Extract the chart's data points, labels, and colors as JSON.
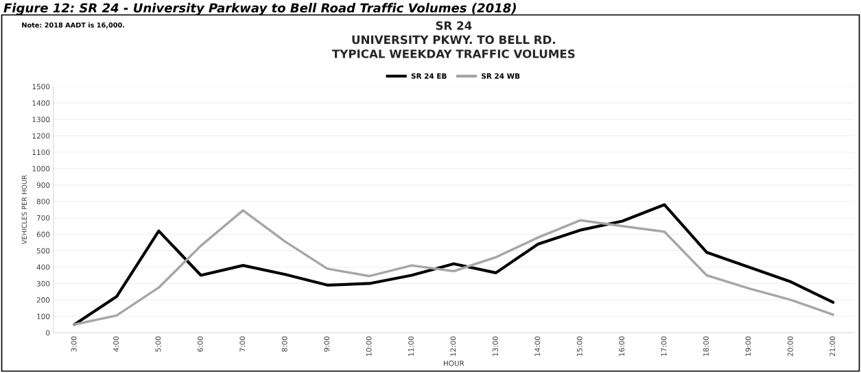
{
  "chart_data": {
    "type": "line",
    "title": "SR 24\nUNIVERSITY PKWY. TO BELL RD.\nTYPICAL WEEKDAY TRAFFIC VOLUMES",
    "xlabel": "HOUR",
    "ylabel": "VEHICLES PER HOUR",
    "annotations": [
      "Figure 12: SR 24 - University Parkway to Bell Road Traffic Volumes (2018)",
      "Note: 2018 AADT is 16,000."
    ],
    "categories": [
      "3:00",
      "4:00",
      "5:00",
      "6:00",
      "7:00",
      "8:00",
      "9:00",
      "10:00",
      "11:00",
      "12:00",
      "13:00",
      "14:00",
      "15:00",
      "16:00",
      "17:00",
      "18:00",
      "19:00",
      "20:00",
      "21:00"
    ],
    "series": [
      {
        "name": "SR 24 EB",
        "color": "#000000",
        "values": [
          50,
          220,
          620,
          350,
          410,
          355,
          290,
          300,
          350,
          420,
          365,
          540,
          625,
          680,
          780,
          490,
          400,
          310,
          185
        ]
      },
      {
        "name": "SR 24 WB",
        "color": "#a6a6a6",
        "values": [
          50,
          105,
          275,
          530,
          745,
          555,
          390,
          345,
          410,
          375,
          460,
          580,
          685,
          650,
          615,
          350,
          270,
          200,
          110
        ]
      }
    ],
    "ylim": [
      0,
      1500
    ],
    "yticks": [
      0,
      100,
      200,
      300,
      400,
      500,
      600,
      700,
      800,
      900,
      1000,
      1100,
      1200,
      1300,
      1400,
      1500
    ],
    "grid": "y",
    "legend": "top",
    "marker": "none",
    "line_style": "solid"
  }
}
